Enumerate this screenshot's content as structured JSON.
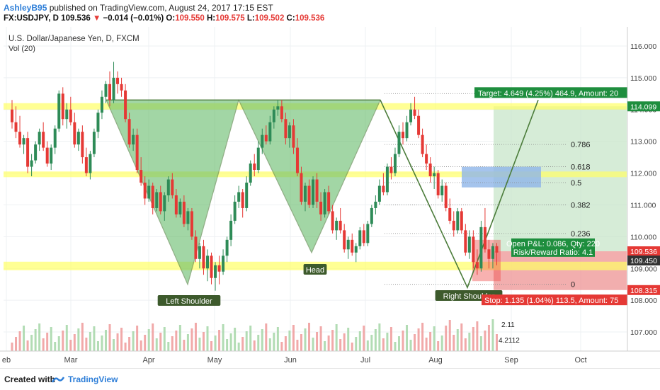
{
  "header": {
    "author": "AshleyB95",
    "published_text": "published on TradingView.com, August 24, 2017 17:15 EST",
    "symbol": "FX:USDJPY, D",
    "price": "109.536",
    "change_arrow": "▼",
    "change": "−0.014 (−0.01%)",
    "open_label": "O:",
    "open": "109.550",
    "high_label": "H:",
    "high": "109.575",
    "low_label": "L:",
    "low": "109.502",
    "close_label": "C:",
    "close": "109.536"
  },
  "chart_title": "U.S. Dollar/Japanese Yen, D, FXCM",
  "volume_label": "Vol (20)",
  "footer": {
    "created_with": "Created with",
    "brand": "TradingView"
  },
  "colors": {
    "up": "#2e8b57",
    "down": "#e53935",
    "zone": "#ffff66",
    "pattern_fill": "#66bb6a",
    "target": "#c8e6c9",
    "stop": "#ef9a9a",
    "blue_box": "#8fb5e8"
  },
  "chart_data": {
    "type": "candlestick",
    "title": "U.S. Dollar/Japanese Yen, D, FXCM",
    "ylim": [
      106.4,
      116.6
    ],
    "price_ticks": [
      "116.000",
      "115.000",
      "114.000",
      "113.000",
      "112.000",
      "111.000",
      "110.000",
      "109.000",
      "108.000",
      "107.000"
    ],
    "x_labels": [
      "eb",
      "Mar",
      "Apr",
      "May",
      "Jun",
      "Jul",
      "Aug",
      "Sep",
      "Oct"
    ],
    "candles": [
      [
        0,
        114.0,
        114.3,
        113.4,
        113.6
      ],
      [
        1,
        113.6,
        114.1,
        113.1,
        113.3
      ],
      [
        2,
        113.3,
        113.8,
        112.8,
        112.9
      ],
      [
        3,
        112.9,
        113.2,
        112.6,
        113.1
      ],
      [
        4,
        113.1,
        113.3,
        112.0,
        112.2
      ],
      [
        5,
        112.2,
        112.6,
        111.9,
        112.4
      ],
      [
        6,
        112.4,
        113.0,
        112.3,
        112.9
      ],
      [
        7,
        112.9,
        113.4,
        112.7,
        113.3
      ],
      [
        8,
        113.3,
        113.6,
        112.7,
        112.8
      ],
      [
        9,
        112.8,
        113.0,
        112.2,
        112.3
      ],
      [
        10,
        112.3,
        112.9,
        112.1,
        112.8
      ],
      [
        11,
        112.8,
        113.5,
        112.6,
        113.4
      ],
      [
        12,
        113.4,
        114.6,
        113.3,
        114.5
      ],
      [
        13,
        114.5,
        114.7,
        113.5,
        113.7
      ],
      [
        14,
        113.7,
        114.2,
        113.4,
        114.0
      ],
      [
        15,
        114.0,
        114.4,
        113.5,
        113.6
      ],
      [
        16,
        113.6,
        113.9,
        112.8,
        112.9
      ],
      [
        17,
        112.9,
        113.4,
        112.7,
        113.3
      ],
      [
        18,
        113.3,
        113.5,
        112.3,
        112.5
      ],
      [
        19,
        112.5,
        112.8,
        111.9,
        112.0
      ],
      [
        20,
        112.0,
        112.7,
        111.8,
        112.6
      ],
      [
        21,
        112.6,
        113.4,
        112.5,
        113.3
      ],
      [
        22,
        113.3,
        114.0,
        113.1,
        113.9
      ],
      [
        23,
        113.9,
        114.6,
        113.7,
        114.4
      ],
      [
        24,
        114.4,
        114.9,
        114.2,
        114.8
      ],
      [
        25,
        114.8,
        115.2,
        114.1,
        114.3
      ],
      [
        26,
        114.3,
        115.5,
        114.2,
        115.0
      ],
      [
        27,
        115.0,
        115.2,
        114.5,
        114.8
      ],
      [
        28,
        114.8,
        115.0,
        114.4,
        114.6
      ],
      [
        29,
        114.6,
        114.8,
        113.6,
        113.7
      ],
      [
        30,
        113.7,
        113.9,
        112.8,
        112.9
      ],
      [
        31,
        112.9,
        113.4,
        112.7,
        113.2
      ],
      [
        32,
        113.2,
        113.4,
        112.0,
        112.1
      ],
      [
        33,
        112.1,
        112.5,
        111.6,
        111.7
      ],
      [
        34,
        111.7,
        111.9,
        111.0,
        111.2
      ],
      [
        35,
        111.2,
        111.8,
        111.1,
        111.6
      ],
      [
        36,
        111.6,
        111.7,
        110.7,
        110.9
      ],
      [
        37,
        110.9,
        111.5,
        110.8,
        111.4
      ],
      [
        38,
        111.4,
        111.6,
        110.7,
        110.8
      ],
      [
        39,
        110.8,
        111.4,
        110.5,
        111.3
      ],
      [
        40,
        111.3,
        111.9,
        111.1,
        111.8
      ],
      [
        41,
        111.8,
        112.0,
        111.2,
        111.3
      ],
      [
        42,
        111.3,
        111.5,
        110.6,
        110.7
      ],
      [
        43,
        110.7,
        111.2,
        110.6,
        111.1
      ],
      [
        44,
        111.1,
        111.3,
        110.3,
        110.4
      ],
      [
        45,
        110.4,
        110.9,
        110.2,
        110.8
      ],
      [
        46,
        110.8,
        110.9,
        109.9,
        110.0
      ],
      [
        47,
        110.0,
        110.2,
        109.2,
        109.3
      ],
      [
        48,
        109.3,
        109.8,
        109.0,
        109.7
      ],
      [
        49,
        109.7,
        109.9,
        108.8,
        109.0
      ],
      [
        50,
        109.0,
        109.6,
        108.6,
        109.4
      ],
      [
        51,
        109.4,
        109.5,
        108.5,
        108.7
      ],
      [
        52,
        108.7,
        109.2,
        108.3,
        109.1
      ],
      [
        53,
        109.1,
        109.4,
        108.5,
        108.9
      ],
      [
        54,
        108.9,
        109.6,
        108.8,
        109.4
      ],
      [
        55,
        109.4,
        110.0,
        109.2,
        109.9
      ],
      [
        56,
        109.9,
        110.7,
        109.7,
        110.5
      ],
      [
        57,
        110.5,
        111.3,
        110.4,
        111.1
      ],
      [
        58,
        111.1,
        111.6,
        110.9,
        111.4
      ],
      [
        59,
        111.4,
        111.5,
        110.6,
        110.9
      ],
      [
        60,
        110.9,
        111.9,
        110.8,
        111.7
      ],
      [
        61,
        111.7,
        112.4,
        111.6,
        112.3
      ],
      [
        62,
        112.3,
        112.6,
        111.9,
        112.1
      ],
      [
        63,
        112.1,
        113.0,
        112.0,
        112.8
      ],
      [
        64,
        112.8,
        113.4,
        112.6,
        113.2
      ],
      [
        65,
        113.2,
        113.5,
        112.9,
        113.0
      ],
      [
        66,
        113.0,
        113.8,
        112.9,
        113.6
      ],
      [
        67,
        113.6,
        114.1,
        113.4,
        114.0
      ],
      [
        68,
        114.0,
        114.3,
        113.8,
        114.1
      ],
      [
        69,
        114.1,
        114.3,
        113.6,
        113.7
      ],
      [
        70,
        113.7,
        113.9,
        112.9,
        113.1
      ],
      [
        71,
        113.1,
        113.6,
        112.8,
        113.5
      ],
      [
        72,
        113.5,
        113.7,
        112.6,
        112.8
      ],
      [
        73,
        112.8,
        113.1,
        111.9,
        112.0
      ],
      [
        74,
        112.0,
        112.2,
        111.0,
        111.1
      ],
      [
        75,
        111.1,
        111.7,
        110.8,
        111.6
      ],
      [
        76,
        111.6,
        111.8,
        110.9,
        111.0
      ],
      [
        77,
        111.0,
        111.9,
        110.9,
        111.8
      ],
      [
        78,
        111.8,
        112.0,
        110.9,
        111.1
      ],
      [
        79,
        111.1,
        111.4,
        110.5,
        110.7
      ],
      [
        80,
        110.7,
        111.5,
        110.6,
        111.4
      ],
      [
        81,
        111.4,
        111.6,
        110.7,
        110.8
      ],
      [
        82,
        110.8,
        111.0,
        110.1,
        110.2
      ],
      [
        83,
        110.2,
        110.6,
        109.9,
        110.5
      ],
      [
        84,
        110.5,
        110.9,
        110.1,
        110.2
      ],
      [
        85,
        110.2,
        110.4,
        109.5,
        109.6
      ],
      [
        86,
        109.6,
        110.0,
        109.3,
        109.9
      ],
      [
        87,
        109.9,
        110.1,
        109.4,
        109.5
      ],
      [
        88,
        109.5,
        109.8,
        109.2,
        109.7
      ],
      [
        89,
        109.7,
        110.3,
        109.6,
        110.2
      ],
      [
        90,
        110.2,
        110.4,
        109.7,
        109.8
      ],
      [
        91,
        109.8,
        110.5,
        109.7,
        110.4
      ],
      [
        92,
        110.4,
        111.0,
        110.3,
        110.9
      ],
      [
        93,
        110.9,
        111.3,
        110.7,
        111.1
      ],
      [
        94,
        111.1,
        111.8,
        111.0,
        111.6
      ],
      [
        95,
        111.6,
        112.0,
        111.3,
        111.4
      ],
      [
        96,
        111.4,
        112.3,
        111.3,
        112.2
      ],
      [
        97,
        112.2,
        112.5,
        111.8,
        112.0
      ],
      [
        98,
        112.0,
        112.8,
        111.9,
        112.6
      ],
      [
        99,
        112.6,
        113.5,
        112.5,
        113.3
      ],
      [
        100,
        113.3,
        113.6,
        112.9,
        113.1
      ],
      [
        101,
        113.1,
        113.8,
        113.0,
        113.6
      ],
      [
        102,
        113.6,
        114.2,
        113.5,
        114.0
      ],
      [
        103,
        114.0,
        114.4,
        113.7,
        113.8
      ],
      [
        104,
        113.8,
        114.0,
        113.1,
        113.2
      ],
      [
        105,
        113.2,
        113.4,
        112.5,
        112.6
      ],
      [
        106,
        112.6,
        112.9,
        112.1,
        112.3
      ],
      [
        107,
        112.3,
        112.5,
        111.7,
        111.9
      ],
      [
        108,
        111.9,
        112.2,
        111.5,
        112.0
      ],
      [
        109,
        112.0,
        112.1,
        111.2,
        111.3
      ],
      [
        110,
        111.3,
        111.8,
        111.1,
        111.6
      ],
      [
        111,
        111.6,
        111.7,
        110.8,
        110.9
      ],
      [
        112,
        110.9,
        111.2,
        110.4,
        110.5
      ],
      [
        113,
        110.5,
        110.8,
        110.0,
        110.2
      ],
      [
        114,
        110.2,
        110.9,
        110.1,
        110.8
      ],
      [
        115,
        110.8,
        110.9,
        110.1,
        110.2
      ],
      [
        116,
        110.2,
        110.4,
        109.4,
        109.5
      ],
      [
        117,
        109.5,
        110.2,
        109.3,
        110.0
      ],
      [
        118,
        110.0,
        110.2,
        109.0,
        109.2
      ],
      [
        119,
        109.2,
        109.6,
        108.8,
        109.0
      ],
      [
        120,
        109.0,
        110.5,
        108.9,
        110.3
      ],
      [
        121,
        110.3,
        110.9,
        109.5,
        109.6
      ],
      [
        122,
        109.6,
        109.9,
        109.0,
        109.3
      ],
      [
        123,
        109.3,
        109.8,
        109.0,
        109.7
      ],
      [
        124,
        109.7,
        109.8,
        109.1,
        109.5
      ]
    ]
  },
  "annotations": {
    "left_shoulder": "Left Shoulder",
    "head": "Head",
    "right_shoulder": "Right Shoulder",
    "fib_levels": [
      {
        "label": "0.786",
        "price": 112.9
      },
      {
        "label": "0.618",
        "price": 112.2
      },
      {
        "label": "0.5",
        "price": 111.7
      },
      {
        "label": "0.382",
        "price": 111.0
      },
      {
        "label": "0.236",
        "price": 110.1
      },
      {
        "label": "0",
        "price": 108.5
      }
    ],
    "target_text": "Target: 4.649 (4.25%) 464.9, Amount: 20",
    "stop_text": "Stop: 1.135 (1.04%) 113.5, Amount: 75",
    "pnl_text": "Open P&L: 0.086, Qty: 220",
    "rr_text": "Risk/Reward Ratio: 4.1",
    "price_tags": [
      {
        "label": "114.099",
        "price": 114.1,
        "color": "#1e8e3e"
      },
      {
        "label": "109.536",
        "price": 109.54,
        "color": "#e53935"
      },
      {
        "label": "109.450",
        "price": 109.25,
        "color": "#333333"
      },
      {
        "label": "108.315",
        "price": 108.32,
        "color": "#e53935"
      }
    ],
    "mini_labels": [
      "2.11",
      "4.2112"
    ]
  }
}
